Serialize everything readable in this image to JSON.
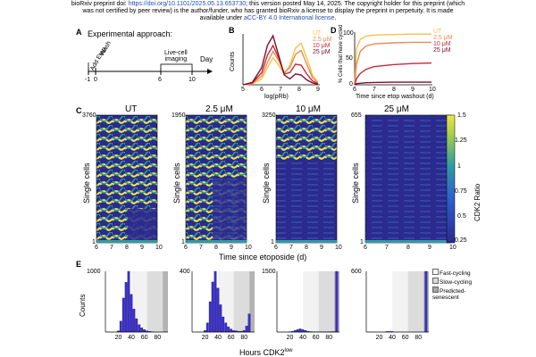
{
  "header": {
    "line1_prefix": "bioRxiv preprint doi: ",
    "doi_url": "https://doi.org/10.1101/2025.05.13.653730",
    "line1_suffix": "; this version posted May 14, 2025. The copyright holder for this preprint (which",
    "line2": "was not certified by peer review) is the author/funder, who has granted bioRxiv a license to display the preprint in perpetuity. It is made",
    "line3_prefix": "available under ",
    "license": "aCC-BY 4.0 International license",
    "line3_suffix": "."
  },
  "panelA": {
    "letter": "A",
    "title": "Experimental approach:",
    "add_label": "Add Etop.",
    "wash_label": "Wash",
    "imaging_label": "Live-cell\nimaging",
    "day_label": "Day",
    "ticks": [
      "-1",
      "0",
      "6",
      "10"
    ]
  },
  "panelB": {
    "letter": "B",
    "ylabel": "Counts",
    "xlabel": "log(pRb)",
    "xticks": [
      "5",
      "6",
      "7",
      "8",
      "9"
    ],
    "legend": [
      "UT",
      "2.5 μM",
      "10 μM",
      "25 μM"
    ]
  },
  "panelD": {
    "letter": "D",
    "ylabel": "% Cells that have cycled",
    "xlabel": "Time since etop washout (d)",
    "yticks": [
      "100",
      "50",
      "0"
    ],
    "xticks": [
      "6",
      "7",
      "8",
      "9",
      "10"
    ],
    "legend": [
      "UT",
      "2.5 μM",
      "10 μM",
      "25 μM"
    ]
  },
  "panelC": {
    "letter": "C",
    "ylabel": "Single cells",
    "xlabel": "Time since etoposide (d)",
    "xticks": [
      "6",
      "7",
      "8",
      "9",
      "10"
    ],
    "titles": [
      "UT",
      "2.5 μM",
      "10 μM",
      "25 μM"
    ],
    "top_counts": [
      "3760",
      "1950",
      "3250",
      "655"
    ],
    "bottom_count": "1",
    "colorbar_label": "CDK2 Ratio",
    "colorbar_ticks": [
      "1.5",
      "1.25",
      "1",
      "0.75",
      "0.5",
      "0.25"
    ]
  },
  "panelE": {
    "letter": "E",
    "ylabel": "Counts",
    "xlabel": "Hours CDK2",
    "xlabel_super": "low",
    "xticks": [
      "20",
      "40",
      "60",
      "80"
    ],
    "ymax_labels": [
      "1000",
      "400",
      "1500",
      "600"
    ],
    "legend": [
      "Fast-cycling",
      "Slow-cycling",
      "Predicted-\nsenescent"
    ]
  },
  "colors": {
    "UT": "#f6c343",
    "c2_5": "#ea8a55",
    "c10": "#c5283d",
    "c25": "#7d1128",
    "hist_bar": "#3b2fc9",
    "senescent_bar": "#4a44d6",
    "heat_low": "#2b2a8e",
    "heat_mid": "#2e9ba1",
    "heat_high": "#f0e442"
  },
  "chart_data": [
    {
      "type": "line",
      "title": "Panel B",
      "xlabel": "log(pRb)",
      "ylabel": "Counts",
      "xlim": [
        5,
        9
      ],
      "series": [
        {
          "name": "UT",
          "x": [
            5,
            5.5,
            6,
            6.3,
            6.6,
            6.9,
            7.2,
            7.5,
            7.8,
            8.1,
            8.4,
            8.7,
            9
          ],
          "y": [
            0,
            0.02,
            0.12,
            0.35,
            0.55,
            0.4,
            0.22,
            0.4,
            0.75,
            0.85,
            0.55,
            0.2,
            0.05
          ]
        },
        {
          "name": "2.5 μM",
          "x": [
            5,
            5.5,
            6,
            6.3,
            6.6,
            6.9,
            7.2,
            7.5,
            7.8,
            8.1,
            8.4,
            8.7,
            9
          ],
          "y": [
            0,
            0.03,
            0.18,
            0.45,
            0.68,
            0.5,
            0.25,
            0.35,
            0.62,
            0.7,
            0.42,
            0.15,
            0.03
          ]
        },
        {
          "name": "10 μM",
          "x": [
            5,
            5.5,
            6,
            6.3,
            6.6,
            6.9,
            7.2,
            7.5,
            7.8,
            8.1,
            8.4,
            8.7,
            9
          ],
          "y": [
            0,
            0.04,
            0.25,
            0.6,
            0.8,
            0.55,
            0.22,
            0.25,
            0.42,
            0.4,
            0.22,
            0.08,
            0.02
          ]
        },
        {
          "name": "25 μM",
          "x": [
            5,
            5.5,
            6,
            6.3,
            6.6,
            6.9,
            7.2,
            7.5,
            7.8,
            8.1,
            8.4,
            8.7,
            9
          ],
          "y": [
            0,
            0.05,
            0.35,
            0.8,
            1.0,
            0.6,
            0.2,
            0.12,
            0.22,
            0.2,
            0.1,
            0.04,
            0.01
          ]
        }
      ]
    },
    {
      "type": "line",
      "title": "Panel D",
      "xlabel": "Time since etop washout (d)",
      "ylabel": "% Cells that have cycled",
      "xlim": [
        6,
        10
      ],
      "ylim": [
        0,
        100
      ],
      "series": [
        {
          "name": "UT",
          "x": [
            6,
            6.1,
            6.3,
            6.6,
            7,
            8,
            9,
            10
          ],
          "y": [
            0,
            70,
            88,
            94,
            96,
            97,
            98,
            98
          ]
        },
        {
          "name": "2.5 μM",
          "x": [
            6,
            6.1,
            6.3,
            6.6,
            7,
            8,
            9,
            10
          ],
          "y": [
            0,
            40,
            65,
            75,
            79,
            81,
            82,
            82
          ]
        },
        {
          "name": "10 μM",
          "x": [
            6,
            6.1,
            6.3,
            6.6,
            7,
            8,
            9,
            10
          ],
          "y": [
            0,
            12,
            22,
            30,
            35,
            39,
            41,
            42
          ]
        },
        {
          "name": "25 μM",
          "x": [
            6,
            6.1,
            6.3,
            6.6,
            7,
            8,
            9,
            10
          ],
          "y": [
            0,
            2,
            3,
            4,
            4.5,
            5,
            5,
            5
          ]
        }
      ]
    },
    {
      "type": "heatmap",
      "title": "Panel C",
      "xlabel": "Time since etoposide (d)",
      "ylabel": "Single cells",
      "xlim": [
        6,
        10
      ],
      "colorbar_label": "CDK2 Ratio",
      "colorbar_range": [
        0.25,
        1.5
      ],
      "panels": [
        {
          "name": "UT",
          "cells": 3760
        },
        {
          "name": "2.5 μM",
          "cells": 1950
        },
        {
          "name": "10 μM",
          "cells": 3250
        },
        {
          "name": "25 μM",
          "cells": 655
        }
      ]
    },
    {
      "type": "bar",
      "title": "Panel E",
      "xlabel": "Hours CDK2low",
      "ylabel": "Counts",
      "xlim": [
        0,
        96
      ],
      "bin_centers": [
        20,
        24,
        28,
        32,
        36,
        40,
        44,
        48,
        52,
        56,
        60,
        64,
        68,
        72,
        76,
        80,
        84,
        88,
        92
      ],
      "series": [
        {
          "name": "UT",
          "ymax": 1000,
          "values": [
            20,
            180,
            560,
            820,
            1000,
            620,
            380,
            220,
            120,
            70,
            40,
            20,
            10,
            5,
            0,
            0,
            0,
            0,
            0
          ]
        },
        {
          "name": "2.5 μM",
          "ymax": 400,
          "values": [
            10,
            60,
            200,
            330,
            400,
            290,
            180,
            100,
            60,
            35,
            20,
            10,
            8,
            5,
            5,
            10,
            40,
            120,
            0
          ]
        },
        {
          "name": "10 μM",
          "ymax": 1500,
          "values": [
            5,
            15,
            40,
            60,
            80,
            60,
            40,
            20,
            10,
            5,
            5,
            5,
            5,
            5,
            5,
            5,
            10,
            10,
            1500
          ]
        },
        {
          "name": "25 μM",
          "ymax": 600,
          "values": [
            0,
            0,
            0,
            5,
            5,
            5,
            0,
            0,
            0,
            0,
            0,
            0,
            0,
            0,
            0,
            0,
            0,
            0,
            600
          ]
        }
      ]
    }
  ]
}
